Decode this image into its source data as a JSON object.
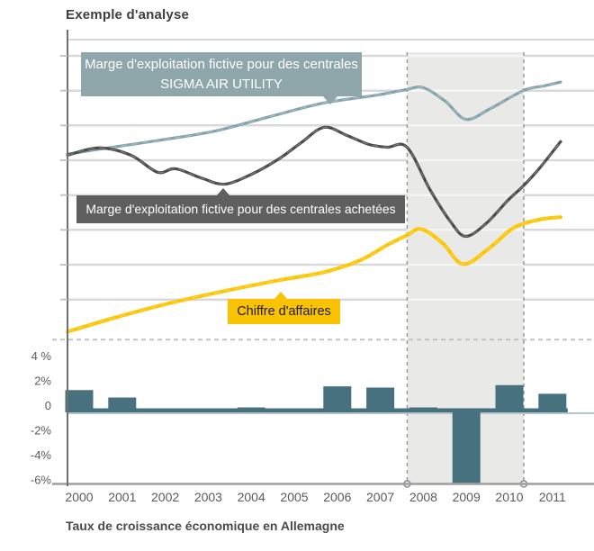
{
  "title": "Exemple d'analyse",
  "footer_caption": "Taux de croissance économique en Allemagne",
  "annotations": {
    "sigma_label": "Marge d'exploitation fictive pour des centrales SIGMA AIR UTILITY",
    "purchased_label": "Marge d'exploitation fictive pour des centrales achetées",
    "revenue_label": "Chiffre d'affaires"
  },
  "colors": {
    "sigma_line": "#83a2ab",
    "sigma_box": "#8fa7aa",
    "purchased_line": "#4b4b4b",
    "purchased_box": "#5f5f5f",
    "revenue_line": "#fdc500",
    "revenue_box": "#f9c304",
    "bars": "#47717f",
    "highlight_band": "#e9e9e7",
    "grid": "#d9d9d9",
    "zero_line": "#b5c4c9",
    "text": "#4a4a4a"
  },
  "chart_data": [
    {
      "type": "line",
      "title": "Exemple d'analyse",
      "x_range": [
        1999.7,
        2011.2
      ],
      "y_axis": "unitless index (no numeric scale shown; 1 unit = one gridline above dashed baseline)",
      "grid": true,
      "legend_position": "inline annotation boxes",
      "highlight_band_years": {
        "from": 2008,
        "to": 2010
      },
      "series": [
        {
          "name": "Marge d'exploitation fictive pour des centrales SIGMA AIR UTILITY",
          "color": "#83a2ab",
          "points": [
            [
              1999.73,
              5.33
            ],
            [
              2000.67,
              5.51
            ],
            [
              2001.93,
              5.74
            ],
            [
              2003.18,
              6.0
            ],
            [
              2004.44,
              6.41
            ],
            [
              2005.69,
              6.8
            ],
            [
              2006.95,
              7.03
            ],
            [
              2007.62,
              7.19
            ],
            [
              2008.0,
              7.24
            ],
            [
              2008.51,
              6.85
            ],
            [
              2008.99,
              6.33
            ],
            [
              2009.56,
              6.64
            ],
            [
              2010.33,
              7.16
            ],
            [
              2010.81,
              7.29
            ],
            [
              2011.19,
              7.4
            ]
          ]
        },
        {
          "name": "Marge d'exploitation fictive pour des centrales achetées",
          "color": "#4b4b4b",
          "points": [
            [
              1999.73,
              5.3
            ],
            [
              2000.46,
              5.51
            ],
            [
              2001.2,
              5.3
            ],
            [
              2001.82,
              4.81
            ],
            [
              2002.24,
              4.91
            ],
            [
              2002.87,
              4.63
            ],
            [
              2003.39,
              4.47
            ],
            [
              2004.02,
              4.76
            ],
            [
              2004.65,
              5.2
            ],
            [
              2005.16,
              5.66
            ],
            [
              2005.69,
              6.1
            ],
            [
              2006.22,
              5.87
            ],
            [
              2006.73,
              5.61
            ],
            [
              2007.16,
              5.53
            ],
            [
              2007.62,
              5.53
            ],
            [
              2008.15,
              4.32
            ],
            [
              2008.62,
              3.41
            ],
            [
              2008.98,
              2.97
            ],
            [
              2009.46,
              3.34
            ],
            [
              2009.97,
              4.01
            ],
            [
              2010.31,
              4.4
            ],
            [
              2010.71,
              4.94
            ],
            [
              2011.19,
              5.69
            ]
          ]
        },
        {
          "name": "Chiffre d'affaires",
          "color": "#fdc500",
          "points": [
            [
              1999.73,
              0.23
            ],
            [
              2000.88,
              0.65
            ],
            [
              2002.14,
              1.06
            ],
            [
              2003.39,
              1.4
            ],
            [
              2004.65,
              1.71
            ],
            [
              2005.69,
              1.94
            ],
            [
              2006.53,
              2.28
            ],
            [
              2007.16,
              2.72
            ],
            [
              2007.62,
              3.0
            ],
            [
              2007.95,
              3.18
            ],
            [
              2008.45,
              2.77
            ],
            [
              2008.93,
              2.17
            ],
            [
              2009.56,
              2.66
            ],
            [
              2010.02,
              3.15
            ],
            [
              2010.35,
              3.34
            ],
            [
              2010.78,
              3.47
            ],
            [
              2011.19,
              3.52
            ]
          ]
        }
      ]
    },
    {
      "type": "bar",
      "categories": [
        "2000",
        "2001",
        "2002",
        "2003",
        "2004",
        "2005",
        "2006",
        "2007",
        "2008",
        "2009",
        "2010",
        "2011"
      ],
      "values": [
        1.8,
        1.2,
        0.1,
        0.3,
        0.4,
        0.25,
        2.1,
        2.0,
        0.4,
        -5.7,
        2.2,
        1.5
      ],
      "unit": "%",
      "xlabel": "Taux de croissance économique en Allemagne",
      "ylabel": "",
      "y_ticks": [
        "4 %",
        "2%",
        "0",
        "-2%",
        "-4%",
        "-6%"
      ],
      "y_tick_values": [
        4,
        2,
        0,
        -2,
        -4,
        -6
      ],
      "ylim": [
        -6.3,
        4.6
      ],
      "bar_color": "#47717f",
      "highlight_band_years": {
        "from": 2008,
        "to": 2010
      }
    }
  ]
}
